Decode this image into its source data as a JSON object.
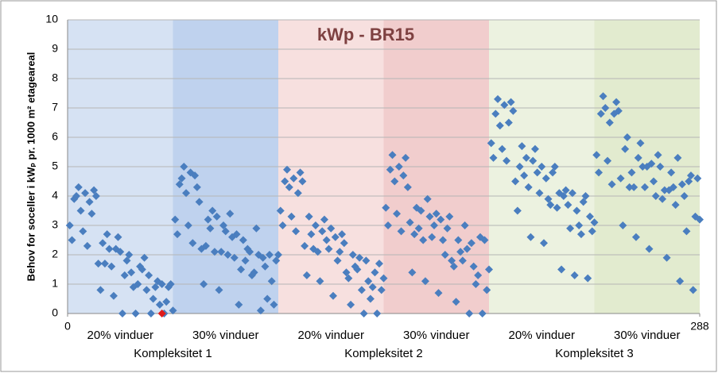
{
  "chart_data": {
    "type": "scatter",
    "title": "kWp - BR15",
    "y_label": "Behov for soceller i kWₚ pr. 1000 m² etageareal",
    "xlim": [
      0,
      288
    ],
    "xticks": [
      0,
      288
    ],
    "ylim": [
      0,
      10
    ],
    "yticks": [
      0,
      1,
      2,
      3,
      4,
      5,
      6,
      7,
      8,
      9,
      10
    ],
    "grid": true,
    "groups": [
      {
        "label": "Kompleksitet 1",
        "subgroups": [
          "20% vinduer",
          "30% vinduer"
        ],
        "colors": [
          "#d6e2f3",
          "#bfd2ee"
        ]
      },
      {
        "label": "Kompleksitet 2",
        "subgroups": [
          "20% vinduer",
          "30% vinduer"
        ],
        "colors": [
          "#f7e0df",
          "#f1cdcd"
        ]
      },
      {
        "label": "Kompleksitet 3",
        "subgroups": [
          "20% vinduer",
          "30% vinduer"
        ],
        "colors": [
          "#ecf2e0",
          "#e2ebcf"
        ]
      }
    ],
    "series": [
      {
        "color": "#4a7ebf",
        "x": [
          1,
          2,
          3,
          4,
          5,
          6,
          7,
          8,
          9,
          10,
          11,
          12,
          13,
          14,
          15,
          16,
          17,
          18,
          19,
          20,
          21,
          22,
          23,
          24,
          25,
          26,
          27,
          28,
          29,
          30,
          31,
          32,
          33,
          34,
          35,
          36,
          37,
          38,
          39,
          40,
          41,
          42,
          43,
          44,
          45,
          46,
          47,
          48,
          49,
          50,
          51,
          52,
          53,
          54,
          55,
          56,
          57,
          58,
          59,
          60,
          61,
          62,
          63,
          64,
          65,
          66,
          67,
          68,
          69,
          70,
          71,
          72,
          73,
          74,
          75,
          76,
          77,
          78,
          79,
          80,
          81,
          82,
          83,
          84,
          85,
          86,
          87,
          88,
          89,
          90,
          91,
          92,
          93,
          94,
          95,
          96,
          97,
          98,
          99,
          100,
          101,
          102,
          103,
          104,
          105,
          106,
          107,
          108,
          109,
          110,
          111,
          112,
          113,
          114,
          115,
          116,
          117,
          118,
          119,
          120,
          121,
          122,
          123,
          124,
          125,
          126,
          127,
          128,
          129,
          130,
          131,
          132,
          133,
          134,
          135,
          136,
          137,
          138,
          139,
          140,
          141,
          142,
          143,
          144,
          145,
          146,
          147,
          148,
          149,
          150,
          151,
          152,
          153,
          154,
          155,
          156,
          157,
          158,
          159,
          160,
          161,
          162,
          163,
          164,
          165,
          166,
          167,
          168,
          169,
          170,
          171,
          172,
          173,
          174,
          175,
          176,
          177,
          178,
          179,
          180,
          181,
          182,
          183,
          184,
          185,
          186,
          187,
          188,
          189,
          190,
          191,
          192,
          193,
          194,
          195,
          196,
          197,
          198,
          199,
          200,
          201,
          202,
          203,
          204,
          205,
          206,
          207,
          208,
          209,
          210,
          211,
          212,
          213,
          214,
          215,
          216,
          217,
          218,
          219,
          220,
          221,
          222,
          223,
          224,
          225,
          226,
          227,
          228,
          229,
          230,
          231,
          232,
          233,
          234,
          235,
          236,
          237,
          238,
          239,
          240,
          241,
          242,
          243,
          244,
          245,
          246,
          247,
          248,
          249,
          250,
          251,
          252,
          253,
          254,
          255,
          256,
          257,
          258,
          259,
          260,
          261,
          262,
          263,
          264,
          265,
          266,
          267,
          268,
          269,
          270,
          271,
          272,
          273,
          274,
          275,
          276,
          277,
          278,
          279,
          280,
          281,
          282,
          283,
          284,
          285,
          286,
          287,
          288
        ],
        "values": [
          3.0,
          2.5,
          3.9,
          4.0,
          4.3,
          3.5,
          2.8,
          4.1,
          2.3,
          3.8,
          3.4,
          4.2,
          4.0,
          1.7,
          0.8,
          2.4,
          1.7,
          2.7,
          2.2,
          1.6,
          0.6,
          2.2,
          2.6,
          2.1,
          0,
          1.3,
          1.8,
          2.0,
          1.4,
          0.9,
          0,
          1.0,
          1.6,
          1.5,
          1.9,
          0.8,
          1.3,
          0,
          0.5,
          0.9,
          1.1,
          0.3,
          1.0,
          0,
          0.4,
          0.9,
          1.0,
          0.1,
          3.2,
          2.7,
          4.4,
          4.6,
          5.0,
          4.1,
          3.0,
          4.8,
          2.4,
          4.7,
          4.3,
          3.8,
          2.2,
          1.0,
          2.3,
          3.2,
          2.9,
          3.5,
          2.1,
          3.3,
          0.8,
          2.1,
          3.0,
          2.8,
          2.0,
          3.4,
          2.6,
          1.9,
          2.7,
          0.3,
          1.5,
          2.5,
          1.8,
          2.2,
          2.1,
          1.3,
          1.4,
          2.9,
          2.0,
          0.1,
          1.9,
          1.6,
          0.5,
          2.0,
          1.1,
          0.3,
          1.8,
          2.0,
          3.5,
          3.0,
          4.5,
          4.9,
          4.3,
          3.3,
          4.6,
          2.8,
          4.1,
          4.8,
          4.5,
          2.3,
          1.3,
          3.3,
          2.7,
          2.2,
          3.0,
          2.1,
          1.1,
          2.8,
          3.2,
          2.5,
          2.2,
          2.9,
          0.6,
          2.6,
          1.8,
          2.1,
          2.7,
          2.4,
          1.4,
          1.2,
          0.3,
          2.0,
          1.6,
          1.5,
          1.9,
          0.8,
          0,
          1.8,
          1.1,
          0.5,
          0.9,
          1.4,
          0,
          1.7,
          0.8,
          1.2,
          3.6,
          3.0,
          4.9,
          5.4,
          4.5,
          3.4,
          5.0,
          2.8,
          4.7,
          5.3,
          4.3,
          3.1,
          1.4,
          2.7,
          3.6,
          2.9,
          3.5,
          2.5,
          1.1,
          3.9,
          3.3,
          2.6,
          3.0,
          3.4,
          0.7,
          3.2,
          2.5,
          2.0,
          2.9,
          3.3,
          1.8,
          1.6,
          0.4,
          2.5,
          2.1,
          1.8,
          3.0,
          2.2,
          0,
          2.4,
          1.6,
          1.0,
          1.3,
          2.6,
          0,
          2.5,
          0.8,
          1.5,
          5.8,
          5.3,
          6.8,
          7.3,
          6.4,
          5.6,
          7.1,
          5.2,
          6.5,
          7.2,
          6.9,
          4.5,
          3.5,
          5.0,
          5.7,
          4.7,
          5.3,
          4.3,
          2.6,
          5.2,
          5.6,
          4.8,
          4.1,
          5.0,
          2.4,
          4.6,
          3.9,
          3.7,
          4.8,
          5.0,
          3.6,
          4.1,
          1.5,
          4.0,
          4.2,
          3.7,
          2.9,
          4.1,
          1.3,
          3.5,
          3.0,
          2.7,
          3.8,
          4.0,
          1.2,
          3.3,
          2.8,
          3.1,
          5.4,
          4.8,
          6.8,
          7.4,
          7.0,
          5.2,
          6.5,
          4.4,
          6.8,
          7.2,
          6.9,
          4.6,
          3.0,
          5.6,
          6.0,
          4.3,
          4.8,
          4.3,
          2.6,
          5.3,
          5.8,
          5.0,
          4.3,
          5.0,
          2.2,
          5.1,
          4.5,
          4.0,
          5.4,
          5.0,
          3.9,
          4.2,
          1.9,
          4.2,
          4.8,
          4.3,
          3.7,
          5.3,
          1.1,
          4.4,
          4.0,
          2.8,
          4.5,
          4.7,
          0.8,
          3.3,
          4.6,
          3.2
        ]
      },
      {
        "color": "#e01b1b",
        "x": [
          43
        ],
        "values": [
          0
        ]
      }
    ]
  }
}
